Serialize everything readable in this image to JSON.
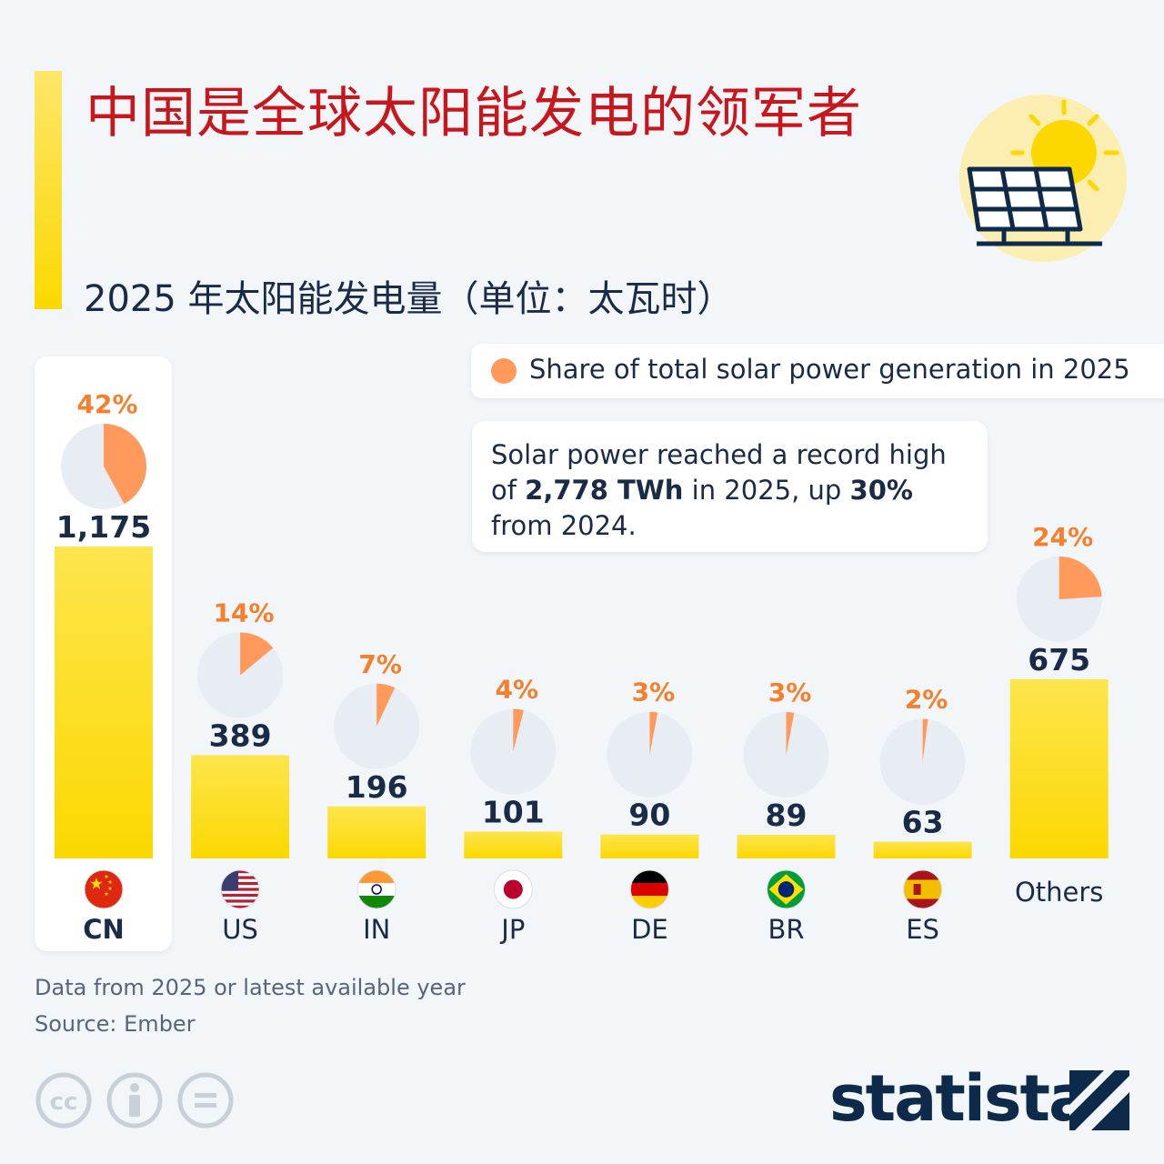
{
  "title": "中国是全球太阳能发电的领军者",
  "subtitle": "2025 年太阳能发电量（单位：太瓦时）",
  "legend": {
    "label": "Share of total solar power generation in 2025",
    "color": "#ff9a5c"
  },
  "note": {
    "part1": "Solar power reached a record high of ",
    "bold1": "2,778 TWh",
    "part2": " in 2025, up ",
    "bold2": "30%",
    "part3": " from 2024."
  },
  "footnote": {
    "line1": "Data from 2025 or latest available year",
    "line2": "Source: Ember"
  },
  "brand": {
    "name": "statista"
  },
  "icons": {
    "header": "solar-panel-sun-icon",
    "license": [
      "cc-icon",
      "attribution-icon",
      "no-derivatives-icon"
    ]
  },
  "colors": {
    "bar": "#fcd800",
    "pie_bg": "#e7edf2",
    "pie_slice": "#ff9a5c",
    "pct_text": "#f57f2c",
    "title": "#c8161d"
  },
  "chart_data": {
    "type": "bar",
    "title": "2025 年太阳能发电量（单位：太瓦时）",
    "unit": "TWh",
    "categories": [
      "CN",
      "US",
      "IN",
      "JP",
      "DE",
      "BR",
      "ES",
      "Others"
    ],
    "values": [
      1175,
      389,
      196,
      101,
      90,
      89,
      63,
      675
    ],
    "value_labels": [
      "1,175",
      "389",
      "196",
      "101",
      "90",
      "89",
      "63",
      "675"
    ],
    "share_percent": [
      42,
      14,
      7,
      4,
      3,
      3,
      2,
      24
    ],
    "share_labels": [
      "42%",
      "14%",
      "7%",
      "4%",
      "3%",
      "3%",
      "2%",
      "24%"
    ],
    "highlight": "CN",
    "flags": [
      "china-flag-icon",
      "usa-flag-icon",
      "india-flag-icon",
      "japan-flag-icon",
      "germany-flag-icon",
      "brazil-flag-icon",
      "spain-flag-icon",
      null
    ],
    "ylabel": "",
    "xlabel": ""
  }
}
